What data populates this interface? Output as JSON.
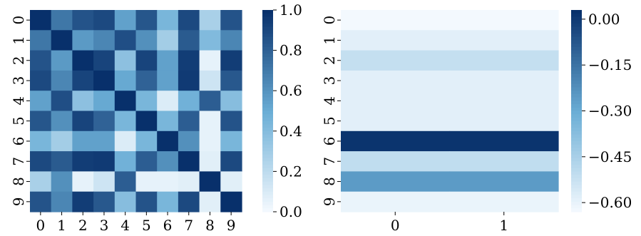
{
  "palette": {
    "low": "#f7fbff",
    "mid": "#6baed6",
    "high": "#08306b"
  },
  "chart_data": [
    {
      "type": "heatmap",
      "x_labels": [
        "0",
        "1",
        "2",
        "3",
        "4",
        "5",
        "6",
        "7",
        "8",
        "9"
      ],
      "y_labels": [
        "0",
        "1",
        "2",
        "3",
        "4",
        "5",
        "6",
        "7",
        "8",
        "9"
      ],
      "values": [
        [
          1.0,
          0.72,
          0.86,
          0.9,
          0.55,
          0.85,
          0.45,
          0.9,
          0.28,
          0.86
        ],
        [
          0.72,
          1.0,
          0.58,
          0.66,
          0.88,
          0.62,
          0.3,
          0.83,
          0.42,
          0.66
        ],
        [
          0.86,
          0.58,
          1.0,
          0.92,
          0.38,
          0.92,
          0.55,
          0.95,
          0.06,
          0.95
        ],
        [
          0.9,
          0.66,
          0.92,
          1.0,
          0.52,
          0.8,
          0.55,
          0.96,
          0.15,
          0.84
        ],
        [
          0.55,
          0.88,
          0.38,
          0.52,
          1.0,
          0.45,
          0.1,
          0.48,
          0.82,
          0.4
        ],
        [
          0.85,
          0.62,
          0.92,
          0.8,
          0.45,
          1.0,
          0.45,
          0.82,
          0.06,
          0.86
        ],
        [
          0.45,
          0.3,
          0.55,
          0.55,
          0.1,
          0.45,
          1.0,
          0.62,
          0.06,
          0.45
        ],
        [
          0.9,
          0.83,
          0.95,
          0.96,
          0.48,
          0.82,
          0.62,
          1.0,
          0.08,
          0.9
        ],
        [
          0.28,
          0.62,
          0.06,
          0.15,
          0.82,
          0.06,
          0.06,
          0.08,
          1.0,
          0.08
        ],
        [
          0.86,
          0.66,
          0.95,
          0.84,
          0.4,
          0.86,
          0.45,
          0.9,
          0.08,
          1.0
        ]
      ],
      "vmin": 0.0,
      "vmax": 1.0,
      "colorbar_ticks": [
        "0.0",
        "0.2",
        "0.4",
        "0.6",
        "0.8",
        "1.0"
      ]
    },
    {
      "type": "heatmap",
      "x_labels": [
        "0",
        "1"
      ],
      "y_labels": [
        "0",
        "1",
        "2",
        "3",
        "4",
        "5",
        "6",
        "7",
        "8",
        "9"
      ],
      "values": [
        [
          -0.62,
          -0.62
        ],
        [
          -0.58,
          -0.58
        ],
        [
          -0.51,
          -0.51
        ],
        [
          -0.58,
          -0.58
        ],
        [
          -0.58,
          -0.58
        ],
        [
          -0.58,
          -0.58
        ],
        [
          0.02,
          0.02
        ],
        [
          -0.5,
          -0.5
        ],
        [
          -0.25,
          -0.25
        ],
        [
          -0.6,
          -0.6
        ]
      ],
      "vmin": -0.63,
      "vmax": 0.03,
      "colorbar_ticks": [
        "0.00",
        "−0.15",
        "−0.30",
        "−0.45",
        "−0.60"
      ]
    }
  ]
}
